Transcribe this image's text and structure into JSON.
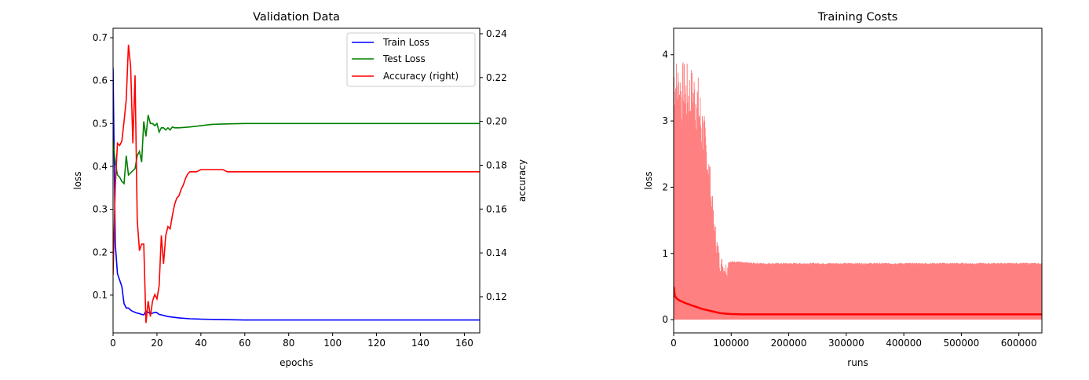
{
  "chart_data": [
    {
      "type": "line",
      "title": "Validation Data",
      "xlabel": "epochs",
      "ylabel": "loss",
      "y2label": "accuracy",
      "xlim": [
        0,
        167
      ],
      "ylim": [
        0.012,
        0.722
      ],
      "y2lim": [
        0.1035,
        0.2425
      ],
      "xticks": [
        0,
        20,
        40,
        60,
        80,
        100,
        120,
        140,
        160
      ],
      "yticks": [
        "0.1",
        "0.2",
        "0.3",
        "0.4",
        "0.5",
        "0.6",
        "0.7"
      ],
      "y2ticks": [
        "0.12",
        "0.14",
        "0.16",
        "0.18",
        "0.20",
        "0.22",
        "0.24"
      ],
      "legend": {
        "position": "top-right",
        "entries": [
          "Train Loss",
          "Test Loss",
          "Accuracy (right)"
        ]
      },
      "grid": false,
      "series": [
        {
          "name": "Train Loss",
          "color": "#0000ff",
          "axis": "left",
          "x": [
            0,
            1,
            2,
            3,
            4,
            5,
            6,
            7,
            8,
            9,
            10,
            11,
            12,
            13,
            14,
            15,
            16,
            17,
            18,
            19,
            20,
            21,
            22,
            25,
            30,
            35,
            40,
            50,
            60,
            80,
            100,
            120,
            140,
            167
          ],
          "y": [
            0.63,
            0.22,
            0.15,
            0.135,
            0.12,
            0.08,
            0.07,
            0.07,
            0.065,
            0.062,
            0.06,
            0.058,
            0.057,
            0.055,
            0.054,
            0.063,
            0.06,
            0.057,
            0.058,
            0.06,
            0.059,
            0.055,
            0.054,
            0.05,
            0.047,
            0.045,
            0.044,
            0.043,
            0.042,
            0.042,
            0.042,
            0.042,
            0.042,
            0.042
          ]
        },
        {
          "name": "Test Loss",
          "color": "#008000",
          "axis": "left",
          "x": [
            0,
            1,
            2,
            3,
            4,
            5,
            6,
            7,
            8,
            9,
            10,
            11,
            12,
            13,
            14,
            15,
            16,
            17,
            18,
            19,
            20,
            21,
            22,
            23,
            24,
            25,
            26,
            27,
            28,
            30,
            35,
            40,
            45,
            50,
            60,
            80,
            100,
            120,
            140,
            167
          ],
          "y": [
            0.46,
            0.41,
            0.38,
            0.375,
            0.365,
            0.36,
            0.425,
            0.38,
            0.385,
            0.39,
            0.395,
            0.425,
            0.435,
            0.41,
            0.505,
            0.47,
            0.52,
            0.5,
            0.5,
            0.495,
            0.5,
            0.48,
            0.49,
            0.49,
            0.485,
            0.49,
            0.485,
            0.492,
            0.49,
            0.49,
            0.492,
            0.495,
            0.498,
            0.499,
            0.5,
            0.5,
            0.5,
            0.5,
            0.5,
            0.5
          ]
        },
        {
          "name": "Accuracy (right)",
          "color": "#ff0000",
          "axis": "right",
          "x": [
            0,
            1,
            2,
            3,
            4,
            5,
            6,
            7,
            8,
            9,
            10,
            11,
            12,
            13,
            14,
            15,
            16,
            17,
            18,
            19,
            20,
            21,
            22,
            23,
            24,
            25,
            26,
            27,
            28,
            29,
            30,
            31,
            32,
            33,
            34,
            35,
            36,
            38,
            40,
            42,
            44,
            46,
            48,
            50,
            52,
            60,
            80,
            100,
            120,
            140,
            167
          ],
          "y": [
            0.13,
            0.17,
            0.19,
            0.189,
            0.191,
            0.2,
            0.21,
            0.235,
            0.225,
            0.19,
            0.221,
            0.155,
            0.141,
            0.144,
            0.144,
            0.108,
            0.118,
            0.111,
            0.118,
            0.121,
            0.119,
            0.125,
            0.148,
            0.135,
            0.148,
            0.152,
            0.151,
            0.157,
            0.162,
            0.165,
            0.166,
            0.169,
            0.171,
            0.174,
            0.176,
            0.177,
            0.177,
            0.177,
            0.178,
            0.178,
            0.178,
            0.178,
            0.178,
            0.178,
            0.177,
            0.177,
            0.177,
            0.177,
            0.177,
            0.177,
            0.177
          ]
        }
      ]
    },
    {
      "type": "line",
      "title": "Training Costs",
      "xlabel": "runs",
      "ylabel": "loss",
      "xlim": [
        0,
        640000
      ],
      "ylim": [
        -0.2,
        4.4
      ],
      "xticks": [
        0,
        100000,
        200000,
        300000,
        400000,
        500000,
        600000
      ],
      "yticks": [
        0,
        1,
        2,
        3,
        4
      ],
      "grid": false,
      "series": [
        {
          "color": "#ff8080",
          "style": "dense-oscillation",
          "x": [
            0,
            5000,
            10000,
            20000,
            30000,
            40000,
            50000,
            60000,
            70000,
            80000,
            90000,
            100000,
            110000,
            120000,
            150000,
            200000,
            300000,
            400000,
            500000,
            640000
          ],
          "envelope_top": [
            4.2,
            4.0,
            3.95,
            3.9,
            3.85,
            3.85,
            3.3,
            2.7,
            1.6,
            1.0,
            0.88,
            0.88,
            0.89,
            0.87,
            0.86,
            0.86,
            0.86,
            0.86,
            0.86,
            0.86
          ],
          "envelope_bottom": [
            0,
            0,
            0,
            0,
            0,
            0,
            0,
            0,
            0,
            0,
            0,
            0,
            0,
            0,
            0,
            0,
            0,
            0,
            0,
            0
          ]
        },
        {
          "color": "#ff0000",
          "style": "smoothed",
          "x": [
            0,
            2000,
            5000,
            10000,
            20000,
            30000,
            40000,
            50000,
            60000,
            70000,
            80000,
            90000,
            100000,
            120000,
            150000,
            200000,
            300000,
            400000,
            500000,
            640000
          ],
          "y": [
            0.5,
            0.36,
            0.32,
            0.29,
            0.25,
            0.22,
            0.19,
            0.16,
            0.14,
            0.12,
            0.1,
            0.09,
            0.085,
            0.08,
            0.08,
            0.08,
            0.08,
            0.08,
            0.08,
            0.08
          ]
        }
      ]
    }
  ]
}
